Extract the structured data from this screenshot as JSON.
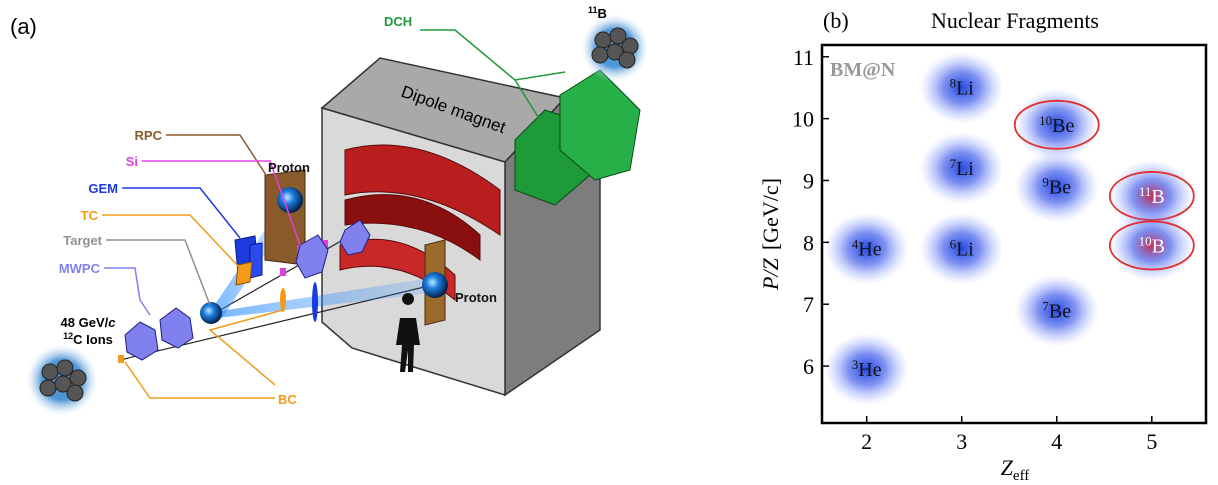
{
  "diagram": {
    "panel_label": "(a)",
    "labels": {
      "dch": "DCH",
      "rpc": "RPC",
      "si": "Si",
      "gem": "GEM",
      "tc": "TC",
      "target": "Target",
      "mwpc": "MWPC",
      "bc": "BC",
      "dipole": "Dipole magnet",
      "proton_upper": "Proton",
      "proton_lower": "Proton"
    },
    "fragment": {
      "mass": "11",
      "element": "B"
    },
    "beam": {
      "energy": "48 GeV/",
      "energy_unit_italic": "c",
      "mass": "12",
      "element": "C Ions"
    }
  },
  "chart_data": {
    "type": "scatter",
    "panel_label": "(b)",
    "title": "Nuclear Fragments",
    "watermark": "BM@N",
    "x_label": "Z",
    "x_label_sub": "eff",
    "y_label": "P/Z",
    "y_label_unit": "[GeV/c]",
    "x": [
      2,
      2,
      3,
      3,
      3,
      4,
      4,
      4,
      5,
      5
    ],
    "y": [
      7.9,
      5.95,
      7.9,
      9.2,
      10.5,
      8.9,
      9.9,
      6.9,
      8.75,
      7.95
    ],
    "label_mass": [
      "4",
      "3",
      "6",
      "7",
      "8",
      "9",
      "10",
      "7",
      "11",
      "10"
    ],
    "label_element": [
      "He",
      "He",
      "Li",
      "Li",
      "Li",
      "Be",
      "Be",
      "Be",
      "B",
      "B"
    ],
    "circled": [
      false,
      false,
      false,
      false,
      false,
      false,
      true,
      false,
      true,
      true
    ],
    "colors": [
      "#1a3fe0",
      "#1a3fe0",
      "#1a3fe0",
      "#1a3fe0",
      "#1a3fe0",
      "#1a3fe0",
      "#1a3fe0",
      "#1a3fe0",
      "#c8204a",
      "#c8204a"
    ],
    "circle_color": "#e03030",
    "xlim": [
      1.53,
      5.57
    ],
    "ylim": [
      5.08,
      11.19
    ],
    "xticks": [
      2,
      3,
      4,
      5
    ],
    "yticks": [
      6,
      7,
      8,
      9,
      10,
      11
    ]
  }
}
